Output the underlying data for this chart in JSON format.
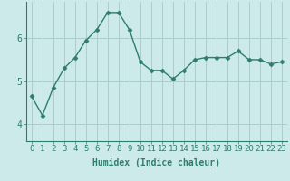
{
  "x": [
    0,
    1,
    2,
    3,
    4,
    5,
    6,
    7,
    8,
    9,
    10,
    11,
    12,
    13,
    14,
    15,
    16,
    17,
    18,
    19,
    20,
    21,
    22,
    23
  ],
  "y": [
    4.65,
    4.2,
    4.85,
    5.3,
    5.55,
    5.95,
    6.2,
    6.6,
    6.6,
    6.2,
    5.45,
    5.25,
    5.25,
    5.05,
    5.25,
    5.5,
    5.55,
    5.55,
    5.55,
    5.7,
    5.5,
    5.5,
    5.4,
    5.45
  ],
  "line_color": "#2e7d6e",
  "marker": "D",
  "marker_size": 2.5,
  "bg_color": "#cceaea",
  "grid_color": "#aacfcf",
  "xlabel": "Humidex (Indice chaleur)",
  "xlabel_fontsize": 7,
  "ytick_labels": [
    "4",
    "5",
    "6"
  ],
  "ytick_vals": [
    4,
    5,
    6
  ],
  "xticks": [
    0,
    1,
    2,
    3,
    4,
    5,
    6,
    7,
    8,
    9,
    10,
    11,
    12,
    13,
    14,
    15,
    16,
    17,
    18,
    19,
    20,
    21,
    22,
    23
  ],
  "ylim": [
    3.6,
    6.85
  ],
  "xlim": [
    -0.5,
    23.5
  ],
  "tick_fontsize": 6.5,
  "line_width": 1.0,
  "line_style": "-"
}
